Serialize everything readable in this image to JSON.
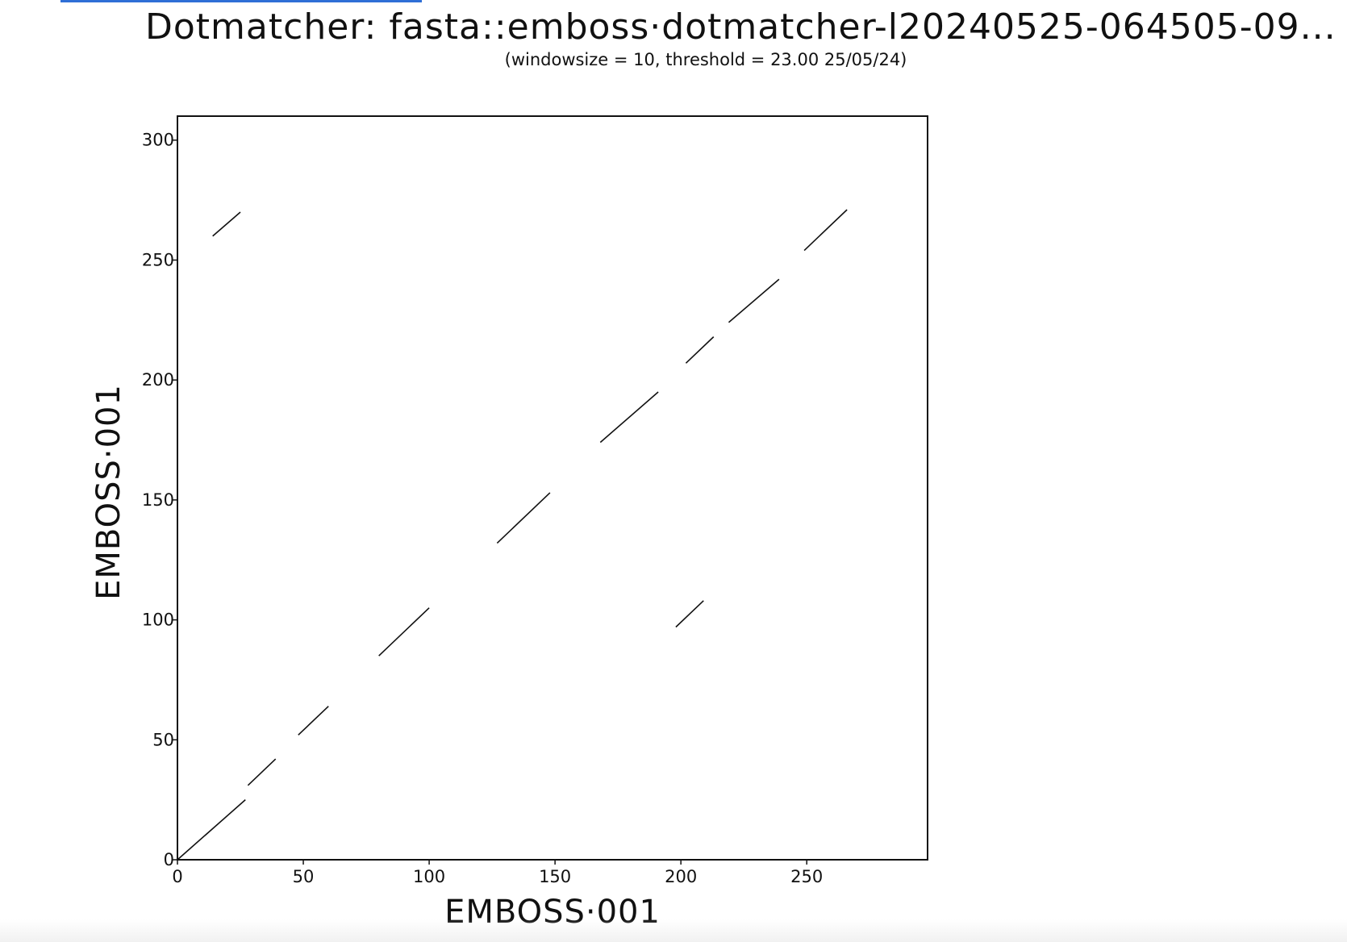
{
  "chart_data": {
    "type": "scatter",
    "title": "Dotmatcher: fasta::emboss·dotmatcher-l20240525-064505-09...",
    "subtitle": "(windowsize = 10, threshold = 23.00  25/05/24)",
    "xlabel": "EMBOSS·001",
    "ylabel": "EMBOSS·001",
    "xlim": [
      0,
      298
    ],
    "ylim": [
      0,
      310
    ],
    "xticks": [
      0,
      50,
      100,
      150,
      200,
      250
    ],
    "yticks": [
      0,
      50,
      100,
      150,
      200,
      250,
      300
    ],
    "grid": false,
    "segments": [
      {
        "x1": 0,
        "y1": 0,
        "x2": 27,
        "y2": 25
      },
      {
        "x1": 28,
        "y1": 31,
        "x2": 39,
        "y2": 42
      },
      {
        "x1": 48,
        "y1": 52,
        "x2": 60,
        "y2": 64
      },
      {
        "x1": 80,
        "y1": 85,
        "x2": 100,
        "y2": 105
      },
      {
        "x1": 127,
        "y1": 132,
        "x2": 148,
        "y2": 153
      },
      {
        "x1": 168,
        "y1": 174,
        "x2": 191,
        "y2": 195
      },
      {
        "x1": 202,
        "y1": 207,
        "x2": 213,
        "y2": 218
      },
      {
        "x1": 219,
        "y1": 224,
        "x2": 239,
        "y2": 242
      },
      {
        "x1": 249,
        "y1": 254,
        "x2": 266,
        "y2": 271
      },
      {
        "x1": 14,
        "y1": 260,
        "x2": 25,
        "y2": 270
      },
      {
        "x1": 198,
        "y1": 97,
        "x2": 209,
        "y2": 108
      }
    ]
  }
}
